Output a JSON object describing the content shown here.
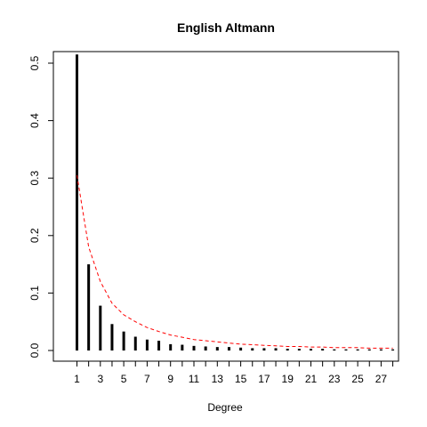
{
  "chart_data": {
    "type": "bar",
    "title": "English Altmann",
    "xlabel": "Degree",
    "ylabel": "",
    "xlim": [
      0,
      28
    ],
    "ylim": [
      0,
      0.52
    ],
    "x_ticks": [
      1,
      3,
      5,
      7,
      9,
      11,
      13,
      15,
      17,
      19,
      21,
      23,
      25,
      27
    ],
    "y_ticks": [
      "0.0",
      "0.1",
      "0.2",
      "0.3",
      "0.4",
      "0.5"
    ],
    "x": [
      1,
      2,
      3,
      4,
      5,
      6,
      7,
      8,
      9,
      10,
      11,
      12,
      13,
      14,
      15,
      16,
      17,
      18,
      19,
      20,
      21,
      22,
      23,
      24,
      25,
      26,
      27,
      28
    ],
    "series": [
      {
        "style": "vertical-bars",
        "color": "#000000",
        "values": [
          0.515,
          0.15,
          0.078,
          0.046,
          0.033,
          0.024,
          0.019,
          0.017,
          0.011,
          0.01,
          0.008,
          0.007,
          0.006,
          0.006,
          0.005,
          0.004,
          0.004,
          0.004,
          0.003,
          0.003,
          0.003,
          0.003,
          0.002,
          0.002,
          0.002,
          0.002,
          0.002,
          0.002
        ]
      },
      {
        "style": "dashed-line",
        "color": "#ff0000",
        "values": [
          0.305,
          0.18,
          0.12,
          0.082,
          0.062,
          0.05,
          0.04,
          0.033,
          0.027,
          0.023,
          0.019,
          0.017,
          0.015,
          0.013,
          0.011,
          0.01,
          0.009,
          0.008,
          0.007,
          0.007,
          0.006,
          0.006,
          0.005,
          0.005,
          0.005,
          0.004,
          0.004,
          0.004
        ]
      }
    ],
    "grid": false,
    "legend": "none"
  }
}
